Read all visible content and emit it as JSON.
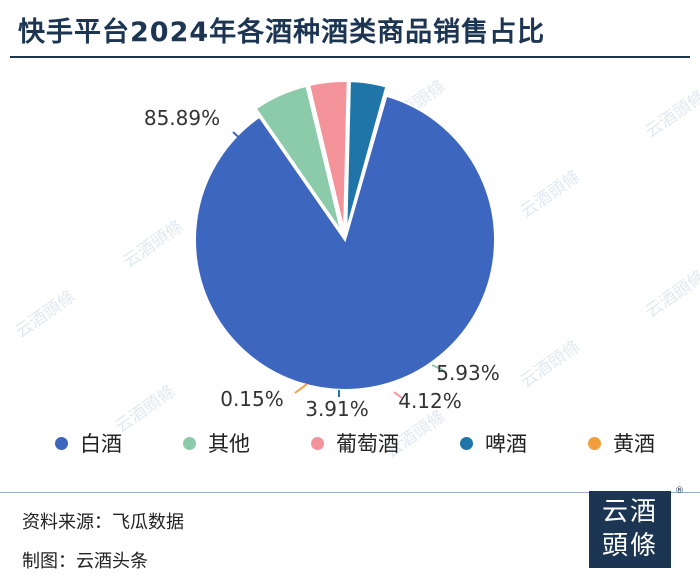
{
  "title": "快手平台2024年各酒种酒类商品销售占比",
  "watermark_text": "云酒頭條",
  "chart_data": {
    "type": "pie",
    "title": "快手平台2024年各酒种酒类商品销售占比",
    "legend_position": "bottom",
    "slices": [
      {
        "name": "白酒",
        "value": 85.89,
        "label": "85.89%",
        "color": "#3d66bf"
      },
      {
        "name": "其他",
        "value": 5.93,
        "label": "5.93%",
        "color": "#8ccba9"
      },
      {
        "name": "葡萄酒",
        "value": 4.12,
        "label": "4.12%",
        "color": "#f4939a"
      },
      {
        "name": "啤酒",
        "value": 3.91,
        "label": "3.91%",
        "color": "#1f75a8"
      },
      {
        "name": "黄酒",
        "value": 0.15,
        "label": "0.15%",
        "color": "#f29d3e"
      }
    ]
  },
  "footer": {
    "source": "资料来源：飞瓜数据",
    "made_by": "制图：云酒头条"
  },
  "logo": {
    "line1": "云酒",
    "line2": "頭條",
    "mark": "®"
  }
}
